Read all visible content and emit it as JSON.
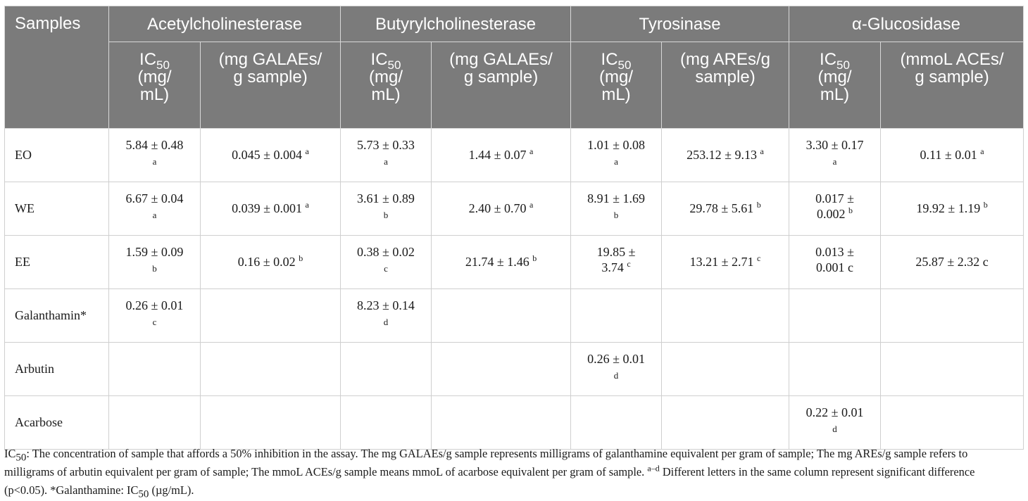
{
  "header": {
    "samples": "Samples",
    "groups": [
      "Acetylcholinesterase",
      "Butyrylcholinesterase",
      "Tyrosinase",
      "α-Glucosidase"
    ],
    "ic_label": "IC",
    "ic_sub": "50",
    "ic_unit_1": "(mg/",
    "ic_unit_2": "mL)",
    "eq_units": [
      [
        "(mg GALAEs/",
        "g sample)"
      ],
      [
        "(mg GALAEs/",
        "g sample)"
      ],
      [
        "(mg AREs/g",
        "sample)"
      ],
      [
        "(mmoL ACEs/",
        "g sample)"
      ]
    ]
  },
  "rows": [
    {
      "name": "EO",
      "cells": [
        {
          "l1": "5.84 ± 0.48",
          "l2": "a",
          "s": ""
        },
        {
          "l1": "0.045 ± 0.004",
          "l2": "",
          "s": "a"
        },
        {
          "l1": "5.73 ± 0.33",
          "l2": "a",
          "s": ""
        },
        {
          "l1": "1.44 ± 0.07",
          "l2": "",
          "s": "a"
        },
        {
          "l1": "1.01 ± 0.08",
          "l2": "a",
          "s": ""
        },
        {
          "l1": "253.12 ± 9.13",
          "l2": "",
          "s": "a"
        },
        {
          "l1": "3.30 ± 0.17",
          "l2": "a",
          "s": ""
        },
        {
          "l1": "0.11 ± 0.01",
          "l2": "",
          "s": "a"
        }
      ]
    },
    {
      "name": "WE",
      "cells": [
        {
          "l1": "6.67 ± 0.04",
          "l2": "a",
          "s": ""
        },
        {
          "l1": "0.039 ± 0.001",
          "l2": "",
          "s": "a"
        },
        {
          "l1": "3.61 ± 0.89",
          "l2": "b",
          "s": ""
        },
        {
          "l1": "2.40 ± 0.70",
          "l2": "",
          "s": "a"
        },
        {
          "l1": "8.91 ± 1.69",
          "l2": "b",
          "s": ""
        },
        {
          "l1": "29.78 ± 5.61",
          "l2": "",
          "s": "b"
        },
        {
          "l1": "0.017 ±",
          "l2": "0.002",
          "s": "b"
        },
        {
          "l1": "19.92 ± 1.19",
          "l2": "",
          "s": "b"
        }
      ]
    },
    {
      "name": "EE",
      "cells": [
        {
          "l1": "1.59 ± 0.09",
          "l2": "b",
          "s": ""
        },
        {
          "l1": "0.16 ± 0.02",
          "l2": "",
          "s": "b"
        },
        {
          "l1": "0.38 ± 0.02",
          "l2": "c",
          "s": ""
        },
        {
          "l1": "21.74 ± 1.46",
          "l2": "",
          "s": "b"
        },
        {
          "l1": "19.85 ±",
          "l2": "3.74",
          "s": "c"
        },
        {
          "l1": "13.21 ± 2.71",
          "l2": "",
          "s": "c"
        },
        {
          "l1": "0.013 ±",
          "l2": "0.001 c",
          "s": ""
        },
        {
          "l1": "25.87 ± 2.32 c",
          "l2": "",
          "s": ""
        }
      ]
    },
    {
      "name": "Galanthamin*",
      "cells": [
        {
          "l1": "0.26 ± 0.01",
          "l2": "c",
          "s": ""
        },
        {
          "l1": "",
          "l2": "",
          "s": ""
        },
        {
          "l1": "8.23 ± 0.14",
          "l2": "d",
          "s": ""
        },
        {
          "l1": "",
          "l2": "",
          "s": ""
        },
        {
          "l1": "",
          "l2": "",
          "s": ""
        },
        {
          "l1": "",
          "l2": "",
          "s": ""
        },
        {
          "l1": "",
          "l2": "",
          "s": ""
        },
        {
          "l1": "",
          "l2": "",
          "s": ""
        }
      ]
    },
    {
      "name": "Arbutin",
      "cells": [
        {
          "l1": "",
          "l2": "",
          "s": ""
        },
        {
          "l1": "",
          "l2": "",
          "s": ""
        },
        {
          "l1": "",
          "l2": "",
          "s": ""
        },
        {
          "l1": "",
          "l2": "",
          "s": ""
        },
        {
          "l1": "0.26 ± 0.01",
          "l2": "d",
          "s": ""
        },
        {
          "l1": "",
          "l2": "",
          "s": ""
        },
        {
          "l1": "",
          "l2": "",
          "s": ""
        },
        {
          "l1": "",
          "l2": "",
          "s": ""
        }
      ]
    },
    {
      "name": "Acarbose",
      "cells": [
        {
          "l1": "",
          "l2": "",
          "s": ""
        },
        {
          "l1": "",
          "l2": "",
          "s": ""
        },
        {
          "l1": "",
          "l2": "",
          "s": ""
        },
        {
          "l1": "",
          "l2": "",
          "s": ""
        },
        {
          "l1": "",
          "l2": "",
          "s": ""
        },
        {
          "l1": "",
          "l2": "",
          "s": ""
        },
        {
          "l1": "0.22 ± 0.01",
          "l2": "d",
          "s": ""
        },
        {
          "l1": "",
          "l2": "",
          "s": ""
        }
      ]
    }
  ],
  "footnote": {
    "ic": "IC",
    "ic_sub": "50",
    "text1": ": The concentration of sample that affords a 50% inhibition in the assay. The mg GALAEs/g sample represents milligrams of galanthamine equivalent per gram of sample; The mg AREs/g sample refers to milligrams of arbutin equivalent per gram of sample; The mmoL ACEs/g sample means mmoL of acarbose equivalent per gram of sample. ",
    "sup": "a–d",
    "text2": " Different letters in the same column represent significant difference (p<0.05). *Galanthamine: IC",
    "sub2": "50",
    "text3": " (µg/mL)."
  },
  "colors": {
    "header_bg": "#7b7b7b",
    "header_text": "#ffffff",
    "grid": "#cfcfcf"
  }
}
